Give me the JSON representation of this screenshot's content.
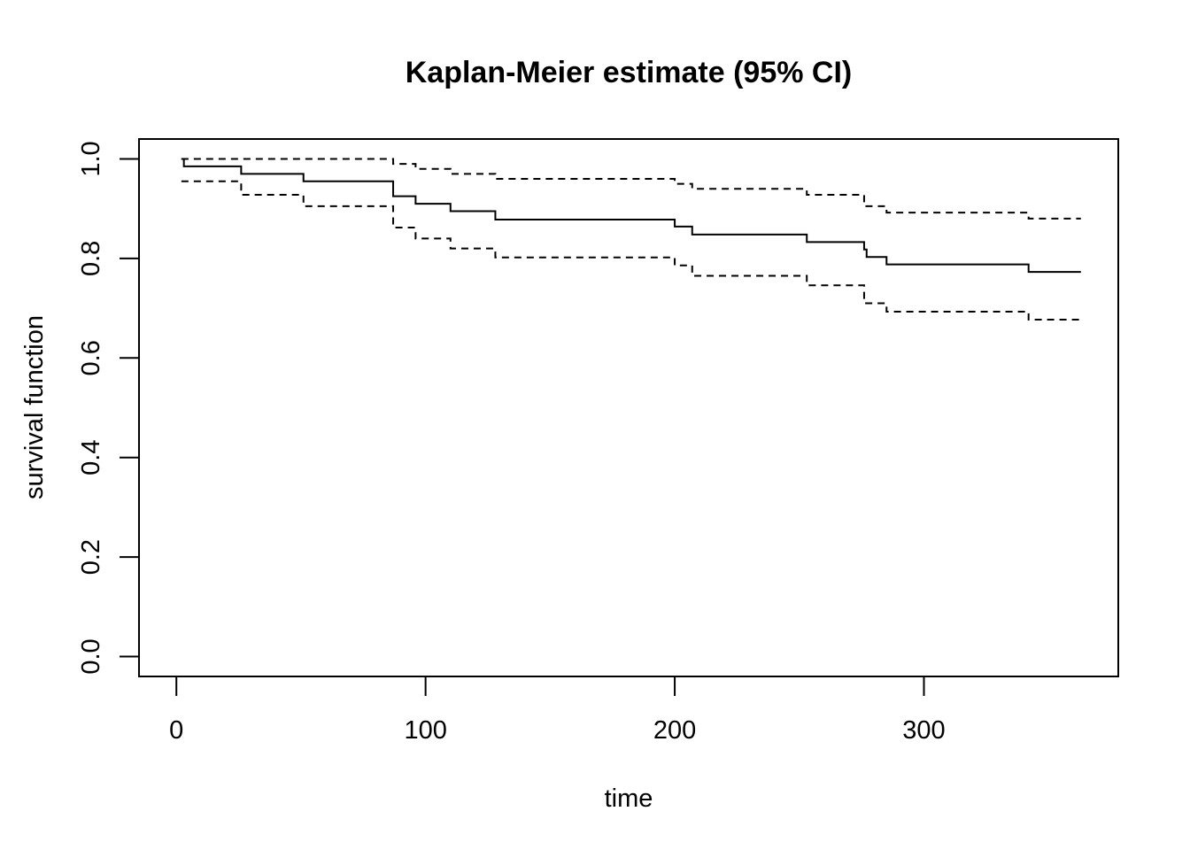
{
  "chart_data": {
    "type": "line",
    "title": "Kaplan-Meier estimate (95% CI)",
    "xlabel": "time",
    "ylabel": "survival function",
    "xlim": [
      -15,
      378
    ],
    "ylim": [
      -0.04,
      1.04
    ],
    "x_ticks": [
      0,
      100,
      200,
      300
    ],
    "y_ticks": [
      0.0,
      0.2,
      0.4,
      0.6,
      0.8,
      1.0
    ],
    "x_tick_labels": [
      "0",
      "100",
      "200",
      "300"
    ],
    "y_tick_labels": [
      "0.0",
      "0.2",
      "0.4",
      "0.6",
      "0.8",
      "1.0"
    ],
    "grid": false,
    "step": true,
    "series": [
      {
        "style": "solid",
        "x": [
          2,
          3,
          26,
          51,
          87,
          96,
          110,
          128,
          200,
          207,
          253,
          276,
          277,
          285,
          342,
          363
        ],
        "y": [
          1.0,
          0.985,
          0.97,
          0.955,
          0.925,
          0.91,
          0.895,
          0.878,
          0.864,
          0.848,
          0.833,
          0.818,
          0.803,
          0.788,
          0.773,
          0.773
        ]
      },
      {
        "style": "dashed",
        "x": [
          2,
          87,
          96,
          110,
          128,
          200,
          207,
          253,
          276,
          285,
          342,
          363
        ],
        "y": [
          1.0,
          0.99,
          0.98,
          0.97,
          0.96,
          0.95,
          0.94,
          0.928,
          0.905,
          0.892,
          0.88,
          0.88
        ]
      },
      {
        "style": "dashed",
        "x": [
          2,
          26,
          51,
          87,
          96,
          110,
          128,
          200,
          207,
          253,
          276,
          285,
          342,
          363
        ],
        "y": [
          0.955,
          0.928,
          0.905,
          0.862,
          0.84,
          0.82,
          0.802,
          0.786,
          0.765,
          0.746,
          0.71,
          0.693,
          0.677,
          0.677
        ]
      }
    ]
  }
}
